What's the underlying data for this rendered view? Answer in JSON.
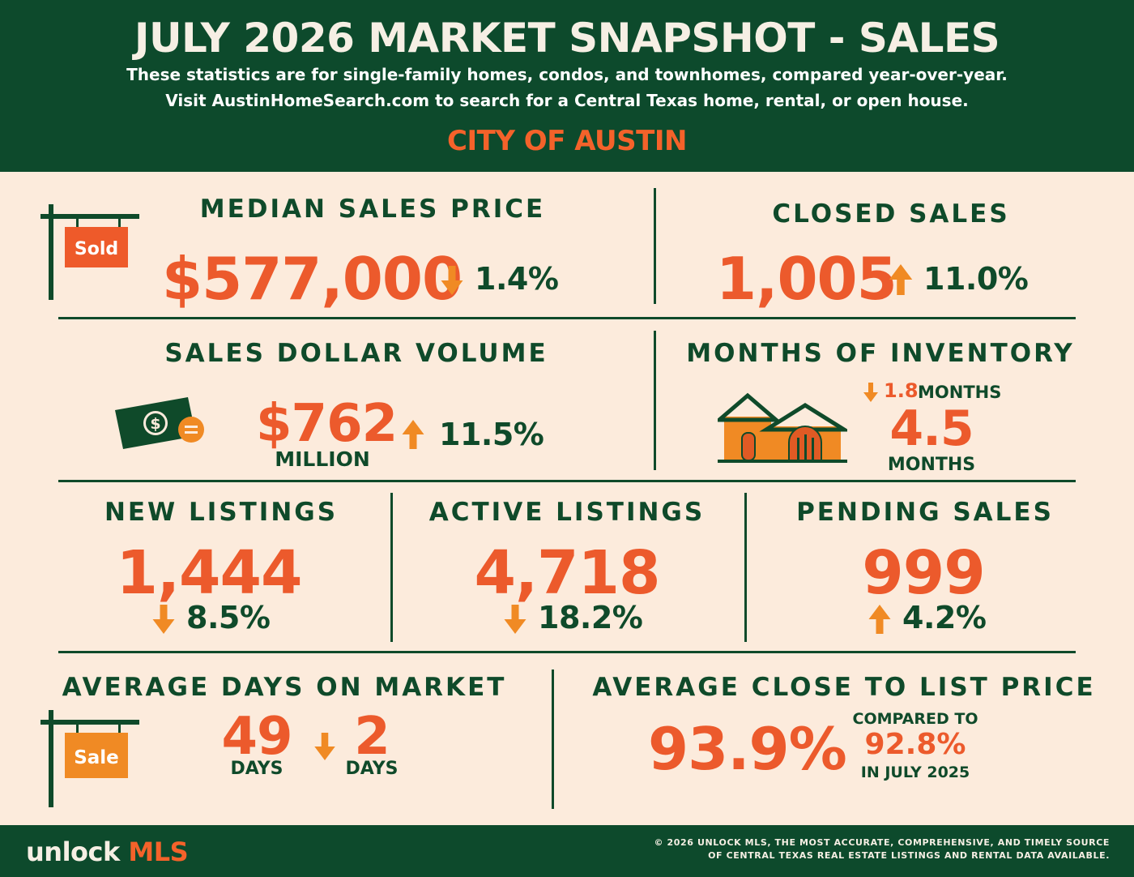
{
  "header": {
    "title": "JULY 2026 MARKET SNAPSHOT - SALES",
    "subtitle_line1": "These statistics are for single-family homes, condos, and townhomes, compared year-over-year.",
    "subtitle_line2": "Visit AustinHomeSearch.com to search for a Central Texas home, rental, or open house.",
    "region": "CITY OF AUSTIN"
  },
  "median_price": {
    "heading": "MEDIAN SALES PRICE",
    "value": "$577,000",
    "change": "1.4%",
    "direction": "down",
    "sign": "Sold"
  },
  "closed_sales": {
    "heading": "CLOSED SALES",
    "value": "1,005",
    "change": "11.0%",
    "direction": "up"
  },
  "dollar_volume": {
    "heading": "SALES DOLLAR VOLUME",
    "value": "$762",
    "unit": "MILLION",
    "change": "11.5%",
    "direction": "up"
  },
  "inventory": {
    "heading": "MONTHS OF INVENTORY",
    "change": "1.8",
    "change_unit": "MONTHS",
    "direction": "down",
    "value": "4.5",
    "unit": "MONTHS"
  },
  "new_listings": {
    "heading": "NEW LISTINGS",
    "value": "1,444",
    "change": "8.5%",
    "direction": "down"
  },
  "active_listings": {
    "heading": "ACTIVE LISTINGS",
    "value": "4,718",
    "change": "18.2%",
    "direction": "down"
  },
  "pending_sales": {
    "heading": "PENDING SALES",
    "value": "999",
    "change": "4.2%",
    "direction": "up"
  },
  "days_on_market": {
    "heading": "AVERAGE DAYS ON MARKET",
    "value": "49",
    "unit": "DAYS",
    "change": "2",
    "change_unit": "DAYS",
    "direction": "down",
    "sign": "Sale"
  },
  "close_to_list": {
    "heading": "AVERAGE CLOSE TO LIST PRICE",
    "value": "93.9%",
    "compared_label": "COMPARED TO",
    "compared_value": "92.8%",
    "compared_period": "IN JULY 2025"
  },
  "footer": {
    "brand_part1": "unlock",
    "brand_part2": "MLS",
    "copyright_line1": "© 2026 UNLOCK MLS, THE MOST ACCURATE, COMPREHENSIVE, AND TIMELY SOURCE",
    "copyright_line2": "OF CENTRAL TEXAS REAL ESTATE LISTINGS AND RENTAL DATA AVAILABLE."
  },
  "colors": {
    "dark_green": "#0d4a2c",
    "orange_red": "#ec5a2c",
    "arrow_orange": "#f08a24",
    "cream": "#fcebdc"
  },
  "icons": [
    "sold-sign-icon",
    "money-icon",
    "house-icon",
    "sale-sign-icon",
    "arrow-up-icon",
    "arrow-down-icon"
  ]
}
